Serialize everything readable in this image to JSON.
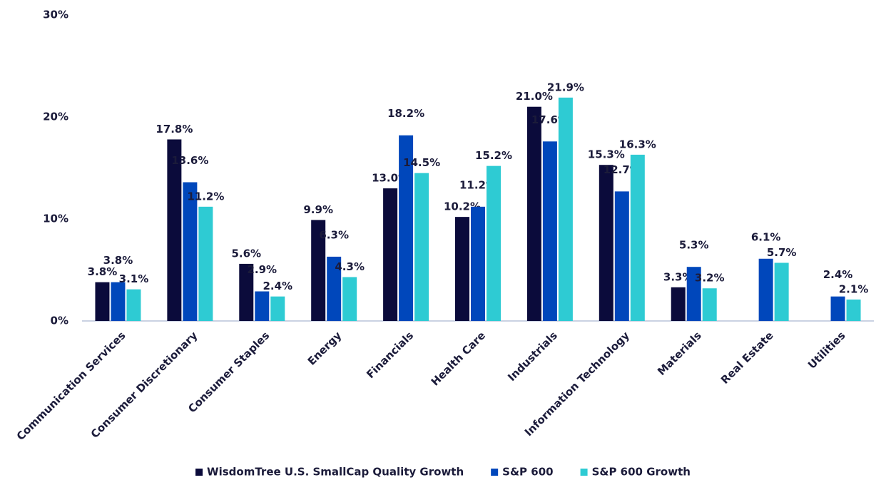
{
  "chart_data": {
    "type": "bar",
    "categories": [
      "Communication Services",
      "Consumer Discretionary",
      "Consumer Staples",
      "Energy",
      "Financials",
      "Health Care",
      "Industrials",
      "Information Technology",
      "Materials",
      "Real Estate",
      "Utilities"
    ],
    "series": [
      {
        "name": "WisdomTree U.S. SmallCap Quality Growth",
        "color": "#0b0b3b",
        "values": [
          3.8,
          17.8,
          5.6,
          9.9,
          13.0,
          10.2,
          21.0,
          15.3,
          3.3,
          null,
          null
        ],
        "value_labels": [
          "3.8%",
          "17.8%",
          "5.6%",
          "9.9%",
          "13.0%",
          "10.2%",
          "21.0%",
          "15.3%",
          "3.3%",
          null,
          null
        ]
      },
      {
        "name": "S&P 600",
        "color": "#0047bb",
        "values": [
          3.8,
          13.6,
          2.9,
          6.3,
          18.2,
          11.2,
          17.6,
          12.7,
          5.3,
          6.1,
          2.4
        ],
        "value_labels": [
          "3.8%",
          "13.6%",
          "2.9%",
          "6.3%",
          "18.2%",
          "11.2%",
          "17.6%",
          "12.7%",
          "5.3%",
          "6.1%",
          "2.4%"
        ]
      },
      {
        "name": "S&P 600 Growth",
        "color": "#2ecbd3",
        "values": [
          3.1,
          11.2,
          2.4,
          4.3,
          14.5,
          15.2,
          21.9,
          16.3,
          3.2,
          5.7,
          2.1
        ],
        "value_labels": [
          "3.1%",
          "11.2%",
          "2.4%",
          "4.3%",
          "14.5%",
          "15.2%",
          "21.9%",
          "16.3%",
          "3.2%",
          "5.7%",
          "2.1%"
        ]
      }
    ],
    "ylim": [
      0,
      30
    ],
    "yticks": [
      {
        "value": 0,
        "label": "0%"
      },
      {
        "value": 10,
        "label": "10%"
      },
      {
        "value": 20,
        "label": "20%"
      },
      {
        "value": 30,
        "label": "30%"
      }
    ],
    "grid": false,
    "legend": "bottom"
  }
}
